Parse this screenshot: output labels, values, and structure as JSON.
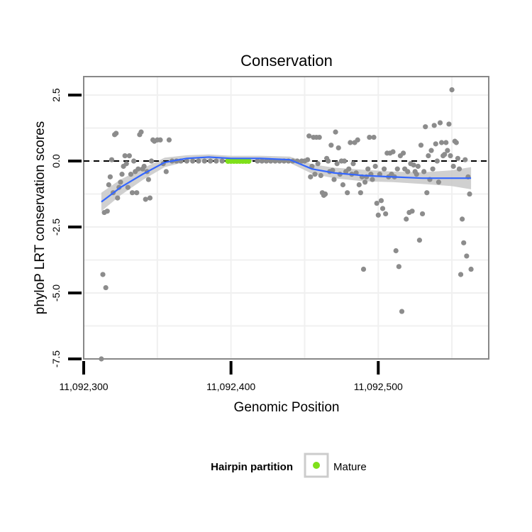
{
  "colors": {
    "point": "#8c8c8c",
    "smooth_line": "#3366ff",
    "ribbon": "#c8c8c8",
    "mature": "#7fe01a",
    "panel_border": "#888888",
    "grid": "#f0f0f0"
  },
  "legend": {
    "title": "Hairpin partition",
    "items": [
      {
        "label": "Mature",
        "color": "#7fe01a"
      }
    ]
  },
  "chart_data": {
    "type": "scatter",
    "title": "Conservation",
    "xlabel": "Genomic Position",
    "ylabel": "phyloP LRT conservation scores",
    "xlim": [
      11092300,
      11092575
    ],
    "ylim": [
      -7.5,
      3.2
    ],
    "x_ticks": [
      11092300,
      11092400,
      11092500
    ],
    "x_tick_labels": [
      "11,092,300",
      "11,092,400",
      "11,092,500"
    ],
    "y_ticks": [
      -7.5,
      -5.0,
      -2.5,
      0.0,
      2.5
    ],
    "y_tick_labels": [
      "-7.5",
      "-5.0",
      "-2.5",
      "0.0",
      "2.5"
    ],
    "grid": true,
    "reference_line": {
      "y": 0,
      "style": "dashed"
    },
    "legend_position": "bottom",
    "points": [
      [
        11092312,
        -7.5
      ],
      [
        11092313,
        -4.3
      ],
      [
        11092314,
        -1.95
      ],
      [
        11092315,
        -4.8
      ],
      [
        11092316,
        -1.9
      ],
      [
        11092317,
        -0.9
      ],
      [
        11092318,
        -0.6
      ],
      [
        11092319,
        0.05
      ],
      [
        11092320,
        -1.2
      ],
      [
        11092321,
        1.0
      ],
      [
        11092322,
        1.05
      ],
      [
        11092323,
        -1.4
      ],
      [
        11092324,
        -1.0
      ],
      [
        11092325,
        -0.8
      ],
      [
        11092326,
        -0.5
      ],
      [
        11092327,
        -0.2
      ],
      [
        11092328,
        0.2
      ],
      [
        11092329,
        -0.1
      ],
      [
        11092330,
        -1.0
      ],
      [
        11092331,
        0.2
      ],
      [
        11092332,
        -0.5
      ],
      [
        11092333,
        -1.2
      ],
      [
        11092334,
        0.0
      ],
      [
        11092335,
        -0.4
      ],
      [
        11092336,
        -1.2
      ],
      [
        11092337,
        -0.3
      ],
      [
        11092338,
        1.0
      ],
      [
        11092339,
        1.1
      ],
      [
        11092340,
        -0.3
      ],
      [
        11092341,
        -0.2
      ],
      [
        11092342,
        -1.45
      ],
      [
        11092343,
        -0.4
      ],
      [
        11092344,
        -0.7
      ],
      [
        11092345,
        -1.4
      ],
      [
        11092346,
        0.0
      ],
      [
        11092347,
        0.8
      ],
      [
        11092348,
        0.75
      ],
      [
        11092350,
        0.8
      ],
      [
        11092352,
        0.8
      ],
      [
        11092354,
        -0.1
      ],
      [
        11092356,
        -0.4
      ],
      [
        11092358,
        0.8
      ],
      [
        11092360,
        0.0
      ],
      [
        11092363,
        0.0
      ],
      [
        11092366,
        0.0
      ],
      [
        11092370,
        0.0
      ],
      [
        11092374,
        0.0
      ],
      [
        11092378,
        0.0
      ],
      [
        11092382,
        0.0
      ],
      [
        11092386,
        0.0
      ],
      [
        11092390,
        0.0
      ],
      [
        11092394,
        0.0
      ],
      [
        11092418,
        0.0
      ],
      [
        11092421,
        0.0
      ],
      [
        11092424,
        0.0
      ],
      [
        11092427,
        0.0
      ],
      [
        11092430,
        0.0
      ],
      [
        11092433,
        0.0
      ],
      [
        11092436,
        0.0
      ],
      [
        11092439,
        0.0
      ],
      [
        11092442,
        0.0
      ],
      [
        11092445,
        0.0
      ],
      [
        11092448,
        0.0
      ],
      [
        11092450,
        0.0
      ],
      [
        11092452,
        0.05
      ],
      [
        11092453,
        0.95
      ],
      [
        11092454,
        -0.6
      ],
      [
        11092455,
        -0.2
      ],
      [
        11092456,
        0.9
      ],
      [
        11092457,
        -0.5
      ],
      [
        11092458,
        0.9
      ],
      [
        11092459,
        -0.1
      ],
      [
        11092460,
        0.9
      ],
      [
        11092461,
        -0.55
      ],
      [
        11092462,
        -1.2
      ],
      [
        11092463,
        -1.3
      ],
      [
        11092464,
        -1.25
      ],
      [
        11092465,
        0.1
      ],
      [
        11092466,
        0.0
      ],
      [
        11092467,
        -0.4
      ],
      [
        11092468,
        0.6
      ],
      [
        11092469,
        -0.35
      ],
      [
        11092470,
        -0.7
      ],
      [
        11092471,
        1.1
      ],
      [
        11092472,
        -0.1
      ],
      [
        11092473,
        0.5
      ],
      [
        11092474,
        -0.5
      ],
      [
        11092475,
        0.0
      ],
      [
        11092476,
        -0.9
      ],
      [
        11092477,
        0.0
      ],
      [
        11092478,
        -0.4
      ],
      [
        11092479,
        -1.2
      ],
      [
        11092480,
        -0.3
      ],
      [
        11092481,
        0.7
      ],
      [
        11092482,
        -0.5
      ],
      [
        11092483,
        -0.1
      ],
      [
        11092484,
        0.7
      ],
      [
        11092485,
        -0.45
      ],
      [
        11092486,
        0.8
      ],
      [
        11092487,
        -0.9
      ],
      [
        11092488,
        -1.2
      ],
      [
        11092489,
        -0.6
      ],
      [
        11092490,
        -4.1
      ],
      [
        11092491,
        -0.8
      ],
      [
        11092492,
        -0.6
      ],
      [
        11092493,
        -0.3
      ],
      [
        11092494,
        0.9
      ],
      [
        11092495,
        -0.5
      ],
      [
        11092496,
        -0.7
      ],
      [
        11092497,
        0.9
      ],
      [
        11092498,
        -0.2
      ],
      [
        11092499,
        -1.6
      ],
      [
        11092500,
        -2.05
      ],
      [
        11092501,
        -0.5
      ],
      [
        11092502,
        -1.5
      ],
      [
        11092503,
        -1.8
      ],
      [
        11092504,
        -0.3
      ],
      [
        11092505,
        -2.0
      ],
      [
        11092506,
        0.3
      ],
      [
        11092507,
        -0.6
      ],
      [
        11092508,
        0.3
      ],
      [
        11092509,
        -0.5
      ],
      [
        11092510,
        0.35
      ],
      [
        11092511,
        -0.6
      ],
      [
        11092512,
        -3.4
      ],
      [
        11092513,
        -0.3
      ],
      [
        11092514,
        -4.0
      ],
      [
        11092515,
        0.2
      ],
      [
        11092516,
        -5.7
      ],
      [
        11092517,
        0.3
      ],
      [
        11092518,
        -0.3
      ],
      [
        11092519,
        -2.2
      ],
      [
        11092520,
        -0.4
      ],
      [
        11092521,
        -1.95
      ],
      [
        11092522,
        -0.1
      ],
      [
        11092523,
        -1.9
      ],
      [
        11092524,
        -0.15
      ],
      [
        11092525,
        -0.4
      ],
      [
        11092526,
        -0.5
      ],
      [
        11092527,
        -0.2
      ],
      [
        11092528,
        -3.0
      ],
      [
        11092529,
        0.6
      ],
      [
        11092530,
        -2.0
      ],
      [
        11092531,
        -0.4
      ],
      [
        11092532,
        1.3
      ],
      [
        11092533,
        -1.2
      ],
      [
        11092534,
        0.2
      ],
      [
        11092535,
        -0.7
      ],
      [
        11092536,
        0.4
      ],
      [
        11092537,
        -0.3
      ],
      [
        11092538,
        1.35
      ],
      [
        11092539,
        0.65
      ],
      [
        11092540,
        0.0
      ],
      [
        11092541,
        -0.8
      ],
      [
        11092542,
        1.45
      ],
      [
        11092543,
        0.7
      ],
      [
        11092544,
        0.2
      ],
      [
        11092545,
        0.25
      ],
      [
        11092546,
        0.7
      ],
      [
        11092547,
        0.4
      ],
      [
        11092548,
        1.4
      ],
      [
        11092549,
        0.2
      ],
      [
        11092550,
        2.7
      ],
      [
        11092551,
        -0.2
      ],
      [
        11092552,
        0.75
      ],
      [
        11092553,
        0.7
      ],
      [
        11092554,
        0.1
      ],
      [
        11092555,
        -0.3
      ],
      [
        11092556,
        -4.3
      ],
      [
        11092557,
        -2.2
      ],
      [
        11092558,
        -3.1
      ],
      [
        11092559,
        0.05
      ],
      [
        11092560,
        -3.6
      ],
      [
        11092561,
        -0.6
      ],
      [
        11092562,
        -1.25
      ],
      [
        11092563,
        -4.1
      ]
    ],
    "mature_points": {
      "x": [
        11092398,
        11092400,
        11092402,
        11092404,
        11092406,
        11092408,
        11092410,
        11092412
      ],
      "y": [
        0.0,
        0.0,
        0.0,
        0.0,
        0.0,
        0.0,
        0.0,
        0.0
      ]
    },
    "smooth": {
      "x": [
        11092312,
        11092325,
        11092340,
        11092355,
        11092370,
        11092385,
        11092400,
        11092420,
        11092440,
        11092455,
        11092470,
        11092490,
        11092510,
        11092530,
        11092550,
        11092563
      ],
      "y": [
        -1.55,
        -1.0,
        -0.5,
        -0.05,
        0.1,
        0.15,
        0.1,
        0.1,
        0.05,
        -0.3,
        -0.45,
        -0.55,
        -0.6,
        -0.65,
        -0.65,
        -0.65
      ],
      "se": [
        0.35,
        0.3,
        0.22,
        0.18,
        0.12,
        0.1,
        0.1,
        0.1,
        0.12,
        0.18,
        0.2,
        0.22,
        0.2,
        0.22,
        0.3,
        0.42
      ]
    }
  }
}
